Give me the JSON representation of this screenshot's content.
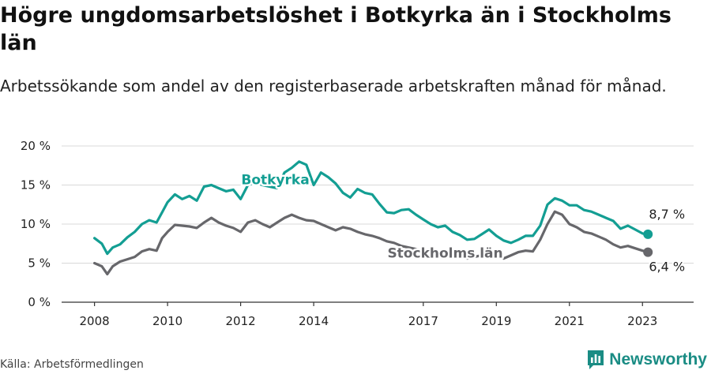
{
  "title": "Högre ungdomsarbetslöshet i Botkyrka än i Stockholms län",
  "subtitle": "Arbetssökande som andel av den registerbaserade arbetskraften månad för månad.",
  "source": "Källa: Arbetsförmedlingen",
  "brand": {
    "name": "Newsworthy",
    "color": "#1a8c84",
    "icon": "bar-chart-logo-icon"
  },
  "colors": {
    "botkyrka": "#139e93",
    "stockholm": "#67676b",
    "grid": "#d8d8d8",
    "axis": "#333333"
  },
  "chart_data": {
    "type": "line",
    "x_ticks": [
      {
        "label": "2008",
        "value": 2008
      },
      {
        "label": "2010",
        "value": 2010
      },
      {
        "label": "2012",
        "value": 2012
      },
      {
        "label": "2014",
        "value": 2014
      },
      {
        "label": "2017",
        "value": 2017
      },
      {
        "label": "2019",
        "value": 2019
      },
      {
        "label": "2021",
        "value": 2021
      },
      {
        "label": "2023",
        "value": 2023
      }
    ],
    "y_ticks": [
      {
        "label": "0 %",
        "value": 0
      },
      {
        "label": "5 %",
        "value": 5
      },
      {
        "label": "10 %",
        "value": 10
      },
      {
        "label": "15 %",
        "value": 15
      },
      {
        "label": "20 %",
        "value": 20
      }
    ],
    "xlim": [
      2007.1,
      2024.4
    ],
    "ylim": [
      0,
      20
    ],
    "series": [
      {
        "name": "Botkyrka",
        "color": "#139e93",
        "end_label": "8,7 %",
        "points": [
          [
            2008.0,
            8.2
          ],
          [
            2008.2,
            7.5
          ],
          [
            2008.35,
            6.2
          ],
          [
            2008.5,
            7.0
          ],
          [
            2008.7,
            7.4
          ],
          [
            2008.9,
            8.3
          ],
          [
            2009.1,
            9.0
          ],
          [
            2009.3,
            10.0
          ],
          [
            2009.5,
            10.5
          ],
          [
            2009.7,
            10.2
          ],
          [
            2009.85,
            11.5
          ],
          [
            2010.0,
            12.8
          ],
          [
            2010.2,
            13.8
          ],
          [
            2010.4,
            13.2
          ],
          [
            2010.6,
            13.6
          ],
          [
            2010.8,
            13.0
          ],
          [
            2011.0,
            14.8
          ],
          [
            2011.2,
            15.0
          ],
          [
            2011.4,
            14.6
          ],
          [
            2011.6,
            14.2
          ],
          [
            2011.8,
            14.4
          ],
          [
            2012.0,
            13.2
          ],
          [
            2012.2,
            15.0
          ],
          [
            2012.4,
            15.3
          ],
          [
            2012.6,
            15.0
          ],
          [
            2012.8,
            14.8
          ],
          [
            2013.0,
            14.6
          ],
          [
            2013.2,
            16.6
          ],
          [
            2013.4,
            17.2
          ],
          [
            2013.6,
            18.0
          ],
          [
            2013.8,
            17.6
          ],
          [
            2014.0,
            15.0
          ],
          [
            2014.2,
            16.6
          ],
          [
            2014.4,
            16.0
          ],
          [
            2014.6,
            15.2
          ],
          [
            2014.8,
            14.0
          ],
          [
            2015.0,
            13.4
          ],
          [
            2015.2,
            14.5
          ],
          [
            2015.4,
            14.0
          ],
          [
            2015.6,
            13.8
          ],
          [
            2015.8,
            12.6
          ],
          [
            2016.0,
            11.5
          ],
          [
            2016.2,
            11.4
          ],
          [
            2016.4,
            11.8
          ],
          [
            2016.6,
            11.9
          ],
          [
            2016.8,
            11.2
          ],
          [
            2017.0,
            10.6
          ],
          [
            2017.2,
            10.0
          ],
          [
            2017.4,
            9.6
          ],
          [
            2017.6,
            9.8
          ],
          [
            2017.8,
            9.0
          ],
          [
            2018.0,
            8.6
          ],
          [
            2018.2,
            8.0
          ],
          [
            2018.4,
            8.1
          ],
          [
            2018.6,
            8.7
          ],
          [
            2018.8,
            9.3
          ],
          [
            2019.0,
            8.5
          ],
          [
            2019.2,
            7.9
          ],
          [
            2019.4,
            7.6
          ],
          [
            2019.6,
            8.0
          ],
          [
            2019.8,
            8.5
          ],
          [
            2020.0,
            8.5
          ],
          [
            2020.2,
            9.8
          ],
          [
            2020.4,
            12.5
          ],
          [
            2020.6,
            13.3
          ],
          [
            2020.8,
            13.0
          ],
          [
            2021.0,
            12.4
          ],
          [
            2021.2,
            12.4
          ],
          [
            2021.4,
            11.8
          ],
          [
            2021.6,
            11.6
          ],
          [
            2021.8,
            11.2
          ],
          [
            2022.0,
            10.8
          ],
          [
            2022.2,
            10.4
          ],
          [
            2022.4,
            9.4
          ],
          [
            2022.6,
            9.8
          ],
          [
            2022.8,
            9.3
          ],
          [
            2023.0,
            8.8
          ],
          [
            2023.15,
            8.7
          ]
        ]
      },
      {
        "name": "Stockholms län",
        "color": "#67676b",
        "end_label": "6,4 %",
        "points": [
          [
            2008.0,
            5.0
          ],
          [
            2008.2,
            4.6
          ],
          [
            2008.35,
            3.6
          ],
          [
            2008.5,
            4.6
          ],
          [
            2008.7,
            5.2
          ],
          [
            2008.9,
            5.5
          ],
          [
            2009.1,
            5.8
          ],
          [
            2009.3,
            6.5
          ],
          [
            2009.5,
            6.8
          ],
          [
            2009.7,
            6.6
          ],
          [
            2009.85,
            8.2
          ],
          [
            2010.0,
            9.0
          ],
          [
            2010.2,
            9.9
          ],
          [
            2010.4,
            9.8
          ],
          [
            2010.6,
            9.7
          ],
          [
            2010.8,
            9.5
          ],
          [
            2011.0,
            10.2
          ],
          [
            2011.2,
            10.8
          ],
          [
            2011.4,
            10.2
          ],
          [
            2011.6,
            9.8
          ],
          [
            2011.8,
            9.5
          ],
          [
            2012.0,
            9.0
          ],
          [
            2012.2,
            10.2
          ],
          [
            2012.4,
            10.5
          ],
          [
            2012.6,
            10.0
          ],
          [
            2012.8,
            9.6
          ],
          [
            2013.0,
            10.2
          ],
          [
            2013.2,
            10.8
          ],
          [
            2013.4,
            11.2
          ],
          [
            2013.6,
            10.8
          ],
          [
            2013.8,
            10.5
          ],
          [
            2014.0,
            10.4
          ],
          [
            2014.2,
            10.0
          ],
          [
            2014.4,
            9.6
          ],
          [
            2014.6,
            9.2
          ],
          [
            2014.8,
            9.6
          ],
          [
            2015.0,
            9.4
          ],
          [
            2015.2,
            9.0
          ],
          [
            2015.4,
            8.7
          ],
          [
            2015.6,
            8.5
          ],
          [
            2015.8,
            8.2
          ],
          [
            2016.0,
            7.8
          ],
          [
            2016.2,
            7.6
          ],
          [
            2016.4,
            7.2
          ],
          [
            2016.6,
            7.0
          ],
          [
            2016.8,
            6.8
          ],
          [
            2017.0,
            6.6
          ],
          [
            2017.2,
            6.4
          ],
          [
            2017.4,
            6.2
          ],
          [
            2017.6,
            6.3
          ],
          [
            2017.8,
            6.0
          ],
          [
            2018.0,
            5.8
          ],
          [
            2018.2,
            5.6
          ],
          [
            2018.4,
            5.8
          ],
          [
            2018.6,
            6.0
          ],
          [
            2018.8,
            6.2
          ],
          [
            2019.0,
            5.8
          ],
          [
            2019.2,
            5.6
          ],
          [
            2019.4,
            6.0
          ],
          [
            2019.6,
            6.4
          ],
          [
            2019.8,
            6.6
          ],
          [
            2020.0,
            6.5
          ],
          [
            2020.2,
            8.0
          ],
          [
            2020.4,
            10.0
          ],
          [
            2020.6,
            11.6
          ],
          [
            2020.8,
            11.2
          ],
          [
            2021.0,
            10.0
          ],
          [
            2021.2,
            9.6
          ],
          [
            2021.4,
            9.0
          ],
          [
            2021.6,
            8.8
          ],
          [
            2021.8,
            8.4
          ],
          [
            2022.0,
            8.0
          ],
          [
            2022.2,
            7.4
          ],
          [
            2022.4,
            7.0
          ],
          [
            2022.6,
            7.2
          ],
          [
            2022.8,
            6.9
          ],
          [
            2023.0,
            6.6
          ],
          [
            2023.15,
            6.4
          ]
        ]
      }
    ],
    "grid": true,
    "legend": "inline labels"
  }
}
